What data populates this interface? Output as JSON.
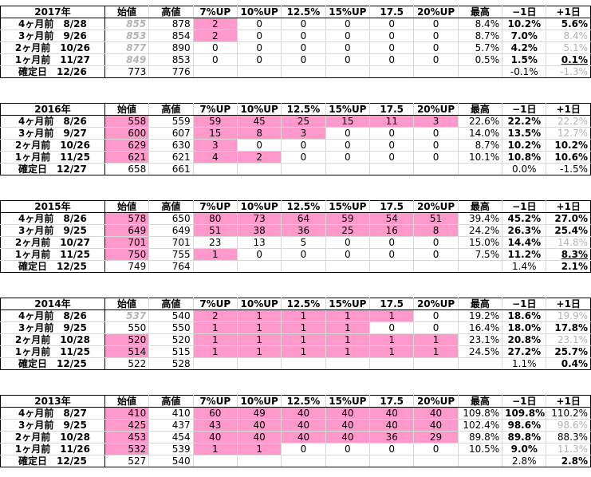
{
  "headers": [
    "始値",
    "高値",
    "7%UP",
    "10%UP",
    "12.5%",
    "15%UP",
    "17.5",
    "20%UP",
    "最高",
    "−1日",
    "+1日"
  ],
  "blocks": [
    {
      "year": "2017年",
      "rows": [
        {
          "label": "4ヶ月前　8/28",
          "cells": [
            "855",
            "878",
            "2",
            "0",
            "0",
            "0",
            "0",
            "0",
            "8.4%",
            "10.2%",
            "5.6%"
          ]
        },
        {
          "label": "3ヶ月前　9/26",
          "cells": [
            "853",
            "854",
            "2",
            "0",
            "0",
            "0",
            "0",
            "0",
            "8.7%",
            "7.0%",
            "8.4%"
          ]
        },
        {
          "label": "2ヶ月前　10/26",
          "cells": [
            "877",
            "890",
            "0",
            "0",
            "0",
            "0",
            "0",
            "0",
            "5.7%",
            "4.2%",
            "5.1%"
          ]
        },
        {
          "label": "1ヶ月前　11/27",
          "cells": [
            "849",
            "853",
            "0",
            "0",
            "0",
            "0",
            "0",
            "0",
            "0.5%",
            "1.5%",
            "0.1%"
          ]
        },
        {
          "label": "確定日　12/26",
          "cells": [
            "773",
            "776",
            "",
            "",
            "",
            "",
            "",
            "",
            "",
            "-0.1%",
            "-1.3%"
          ]
        }
      ]
    },
    {
      "year": "2016年",
      "rows": [
        {
          "label": "4ヶ月前　8/26",
          "cells": [
            "558",
            "559",
            "59",
            "45",
            "25",
            "15",
            "11",
            "3",
            "22.6%",
            "22.2%",
            "22.2%"
          ]
        },
        {
          "label": "3ヶ月前　9/27",
          "cells": [
            "600",
            "607",
            "15",
            "8",
            "3",
            "0",
            "0",
            "0",
            "14.0%",
            "13.5%",
            "12.7%"
          ]
        },
        {
          "label": "2ヶ月前　10/26",
          "cells": [
            "629",
            "630",
            "3",
            "0",
            "0",
            "0",
            "0",
            "0",
            "8.7%",
            "10.2%",
            "10.2%"
          ]
        },
        {
          "label": "1ヶ月前　11/25",
          "cells": [
            "621",
            "621",
            "4",
            "2",
            "0",
            "0",
            "0",
            "0",
            "10.1%",
            "10.8%",
            "10.6%"
          ]
        },
        {
          "label": "確定日　12/27",
          "cells": [
            "658",
            "661",
            "",
            "",
            "",
            "",
            "",
            "",
            "",
            "0.0%",
            "-1.5%"
          ]
        }
      ]
    },
    {
      "year": "2015年",
      "rows": [
        {
          "label": "4ヶ月前　8/26",
          "cells": [
            "578",
            "650",
            "80",
            "73",
            "64",
            "59",
            "54",
            "51",
            "39.4%",
            "45.2%",
            "27.0%"
          ]
        },
        {
          "label": "3ヶ月前　9/25",
          "cells": [
            "649",
            "649",
            "51",
            "38",
            "36",
            "25",
            "16",
            "8",
            "24.2%",
            "26.3%",
            "25.4%"
          ]
        },
        {
          "label": "2ヶ月前　10/27",
          "cells": [
            "701",
            "701",
            "23",
            "13",
            "5",
            "0",
            "0",
            "0",
            "15.0%",
            "14.4%",
            "14.8%"
          ]
        },
        {
          "label": "1ヶ月前　11/25",
          "cells": [
            "750",
            "755",
            "1",
            "0",
            "0",
            "0",
            "0",
            "0",
            "7.5%",
            "11.2%",
            "8.3%"
          ]
        },
        {
          "label": "確定日　12/25",
          "cells": [
            "749",
            "764",
            "",
            "",
            "",
            "",
            "",
            "",
            "",
            "1.4%",
            "2.1%"
          ]
        }
      ]
    },
    {
      "year": "2014年",
      "rows": [
        {
          "label": "4ヶ月前　8/26",
          "cells": [
            "537",
            "540",
            "2",
            "1",
            "1",
            "1",
            "1",
            "0",
            "19.2%",
            "18.6%",
            "19.9%"
          ]
        },
        {
          "label": "3ヶ月前　9/25",
          "cells": [
            "550",
            "550",
            "1",
            "1",
            "1",
            "1",
            "0",
            "0",
            "16.4%",
            "18.0%",
            "17.8%"
          ]
        },
        {
          "label": "2ヶ月前　10/28",
          "cells": [
            "520",
            "520",
            "1",
            "1",
            "1",
            "1",
            "1",
            "1",
            "23.1%",
            "20.8%",
            "23.1%"
          ]
        },
        {
          "label": "1ヶ月前　11/25",
          "cells": [
            "514",
            "515",
            "1",
            "1",
            "1",
            "1",
            "1",
            "1",
            "24.5%",
            "27.2%",
            "25.7%"
          ]
        },
        {
          "label": "確定日　12/25",
          "cells": [
            "522",
            "528",
            "",
            "",
            "",
            "",
            "",
            "",
            "",
            "1.1%",
            "0.4%"
          ]
        }
      ]
    },
    {
      "year": "2013年",
      "rows": [
        {
          "label": "4ヶ月前　8/27",
          "cells": [
            "410",
            "410",
            "60",
            "49",
            "40",
            "40",
            "40",
            "40",
            "109.8%",
            "109.8%",
            "110.2%"
          ]
        },
        {
          "label": "3ヶ月前　9/25",
          "cells": [
            "425",
            "437",
            "43",
            "40",
            "40",
            "40",
            "40",
            "40",
            "102.4%",
            "98.6%",
            "98.6%"
          ]
        },
        {
          "label": "2ヶ月前　10/28",
          "cells": [
            "453",
            "454",
            "40",
            "40",
            "40",
            "40",
            "36",
            "29",
            "89.8%",
            "89.8%",
            "88.3%"
          ]
        },
        {
          "label": "1ヶ月前　11/26",
          "cells": [
            "532",
            "539",
            "1",
            "1",
            "0",
            "0",
            "0",
            "0",
            "10.5%",
            "9.0%",
            "11.3%"
          ]
        },
        {
          "label": "確定日　12/25",
          "cells": [
            "527",
            "540",
            "",
            "",
            "",
            "",
            "",
            "",
            "",
            "2.8%",
            "2.8%"
          ]
        }
      ]
    }
  ]
}
